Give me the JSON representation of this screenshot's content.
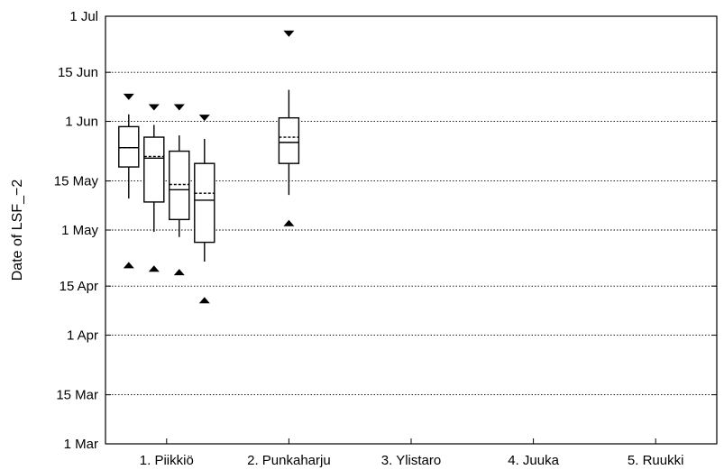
{
  "chart_data": {
    "type": "boxplot",
    "ylabel": "Date of LSF_−2",
    "y_ticks": [
      {
        "label": "1 Mar",
        "day": 60
      },
      {
        "label": "15 Mar",
        "day": 74
      },
      {
        "label": "1 Apr",
        "day": 91
      },
      {
        "label": "15 Apr",
        "day": 105
      },
      {
        "label": "1 May",
        "day": 121
      },
      {
        "label": "15 May",
        "day": 135
      },
      {
        "label": "1 Jun",
        "day": 152
      },
      {
        "label": "15 Jun",
        "day": 166
      },
      {
        "label": "1 Jul",
        "day": 182
      }
    ],
    "ylim_day_of_year": [
      60,
      182
    ],
    "grid": "horizontal dotted",
    "categories": [
      "1. Piikkiö",
      "2. Punkaharju",
      "3. Ylistaro",
      "4. Juuka",
      "5. Ruukki"
    ],
    "groups": [
      {
        "name": "1. Piikkiö",
        "boxes": [
          {
            "whisker_low": 130,
            "q1": 139,
            "median": 144.5,
            "mean": 144.5,
            "q3": 150.5,
            "whisker_high": 154,
            "min": 111,
            "max": 159
          },
          {
            "whisker_low": 120.5,
            "q1": 129,
            "median": 141.5,
            "mean": 142,
            "q3": 147.5,
            "whisker_high": 151,
            "min": 110,
            "max": 156
          },
          {
            "whisker_low": 119,
            "q1": 124,
            "median": 132.5,
            "mean": 134,
            "q3": 143.5,
            "whisker_high": 148,
            "min": 109,
            "max": 156
          },
          {
            "whisker_low": 112,
            "q1": 117.5,
            "median": 129.5,
            "mean": 131.5,
            "q3": 140,
            "whisker_high": 147,
            "min": 101,
            "max": 153
          }
        ]
      },
      {
        "name": "2. Punkaharju",
        "boxes": [
          {
            "whisker_low": 131,
            "q1": 140,
            "median": 146,
            "mean": 147.5,
            "q3": 153,
            "whisker_high": 161,
            "min": 123,
            "max": 177
          }
        ]
      },
      {
        "name": "3. Ylistaro",
        "boxes": []
      },
      {
        "name": "4. Juuka",
        "boxes": []
      },
      {
        "name": "5. Ruukki",
        "boxes": []
      }
    ]
  }
}
